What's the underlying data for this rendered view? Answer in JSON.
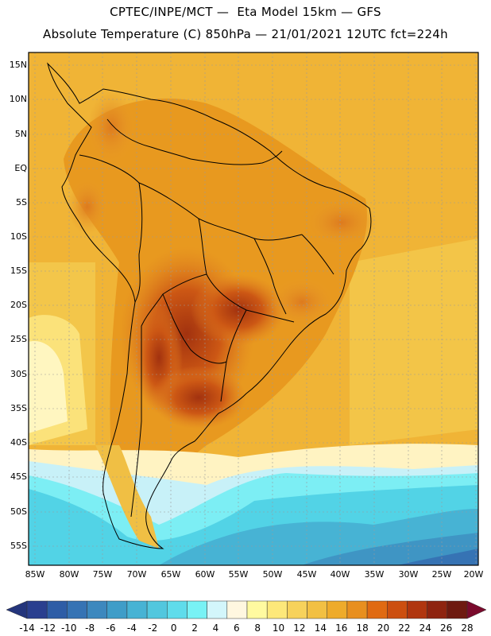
{
  "header": {
    "line1": "CPTEC/INPE/MCT —  Eta Model 15km — GFS",
    "line2": "Absolute Temperature (C) 850hPa — 21/01/2021 12UTC fct=224h"
  },
  "map": {
    "lat_labels": [
      "15N",
      "10N",
      "5N",
      "EQ",
      "5S",
      "10S",
      "15S",
      "20S",
      "25S",
      "30S",
      "35S",
      "40S",
      "45S",
      "50S",
      "55S"
    ],
    "lon_labels": [
      "85W",
      "80W",
      "75W",
      "70W",
      "65W",
      "60W",
      "55W",
      "50W",
      "45W",
      "40W",
      "35W",
      "30W",
      "25W",
      "20W"
    ]
  },
  "colorbar": {
    "labels": [
      "-14",
      "-12",
      "-10",
      "-8",
      "-6",
      "-4",
      "-2",
      "0",
      "2",
      "4",
      "6",
      "8",
      "10",
      "12",
      "14",
      "16",
      "18",
      "20",
      "22",
      "24",
      "26",
      "28"
    ],
    "colors": [
      "#2a3f8f",
      "#2e5da6",
      "#3673b4",
      "#3d88be",
      "#3f9dc8",
      "#47b3d4",
      "#52c7de",
      "#5fdceb",
      "#78f2f5",
      "#d3f6fb",
      "#fff7e0",
      "#fffaa0",
      "#fde87a",
      "#f7d25b",
      "#f2c043",
      "#eeab2b",
      "#e88f1f",
      "#e06a12",
      "#cc4f10",
      "#b0360f",
      "#8e2410",
      "#6e1a10"
    ],
    "low_color": "#24357c",
    "high_color": "#7a0a2c"
  }
}
